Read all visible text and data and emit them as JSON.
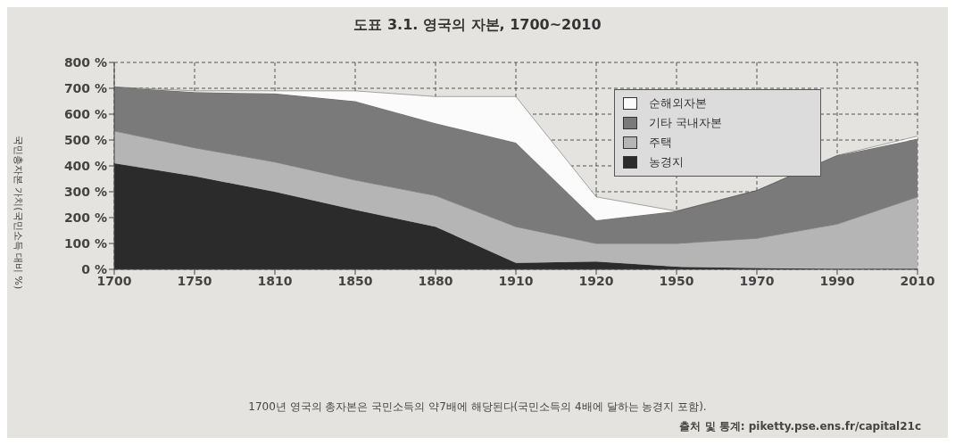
{
  "chart_data": {
    "type": "area",
    "title": "도표 3.1. 영국의 자본, 1700~2010",
    "ylabel": "국민총자본 가치(국민소득 대비 %)",
    "categories": [
      "1700",
      "1750",
      "1810",
      "1850",
      "1880",
      "1910",
      "1920",
      "1950",
      "1970",
      "1990",
      "2010"
    ],
    "stacked": true,
    "series": [
      {
        "name": "농경지",
        "color": "#2b2b2b",
        "values": [
          410,
          360,
          300,
          230,
          165,
          25,
          30,
          10,
          5,
          2,
          2
        ]
      },
      {
        "name": "주택",
        "color": "#b5b5b5",
        "values": [
          125,
          110,
          115,
          115,
          120,
          140,
          70,
          90,
          115,
          173,
          278
        ]
      },
      {
        "name": "기타 국내자본",
        "color": "#7a7a7a",
        "values": [
          170,
          215,
          265,
          305,
          280,
          325,
          90,
          125,
          185,
          265,
          225
        ]
      },
      {
        "name": "순해외자본",
        "color": "#fbfbfb",
        "values": [
          0,
          5,
          10,
          40,
          103,
          178,
          90,
          0,
          0,
          0,
          10
        ]
      }
    ],
    "ylim": [
      0,
      800
    ],
    "yticks": [
      {
        "value": 0,
        "label": "0 %"
      },
      {
        "value": 100,
        "label": "100 %"
      },
      {
        "value": 200,
        "label": "200 %"
      },
      {
        "value": 300,
        "label": "300 %"
      },
      {
        "value": 400,
        "label": "400 %"
      },
      {
        "value": 500,
        "label": "500 %"
      },
      {
        "value": 600,
        "label": "600 %"
      },
      {
        "value": 700,
        "label": "700 %"
      },
      {
        "value": 800,
        "label": "800 %"
      }
    ],
    "grid": true,
    "legend": "top right",
    "line_style": "dashed",
    "annotations": [
      "1700년 영국의 총자본은 국민소득의 약7배에 해당된다(국민소득의 4배에 달하는 농경지 포함).",
      "출처 및 통계: piketty.pse.ens.fr/capital21c"
    ]
  }
}
